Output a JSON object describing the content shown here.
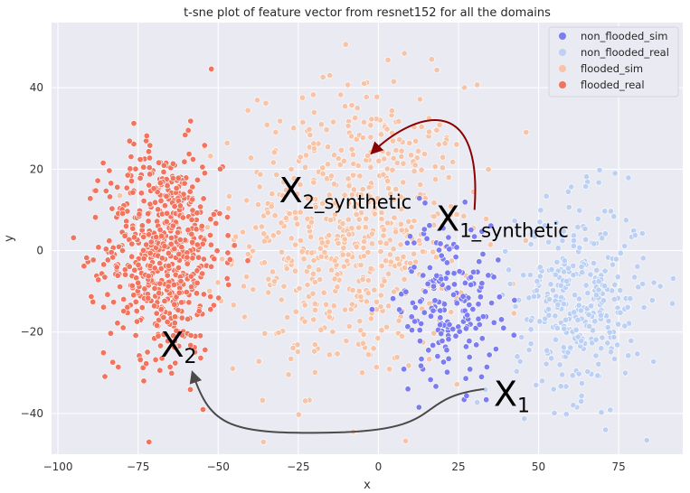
{
  "chart_data": {
    "type": "scatter",
    "title": "t-sne plot of feature vector from resnet152 for all the domains",
    "xlabel": "x",
    "ylabel": "y",
    "xlim": [
      -102,
      95
    ],
    "ylim": [
      -50,
      56
    ],
    "xticks": [
      -100,
      -75,
      -50,
      -25,
      0,
      25,
      50,
      75
    ],
    "yticks": [
      -40,
      -20,
      0,
      20,
      40
    ],
    "grid": true,
    "legend_position": "top-right",
    "series": [
      {
        "name": "non_flooded_sim",
        "color": "#7b7cf0",
        "center": [
          22,
          -12
        ],
        "spread": [
          8,
          10
        ],
        "count": 190
      },
      {
        "name": "non_flooded_real",
        "color": "#bcd0f4",
        "center": [
          63,
          -12
        ],
        "spread": [
          10,
          12
        ],
        "count": 330
      },
      {
        "name": "flooded_sim",
        "color": "#f7c4a8",
        "center": [
          -8,
          5
        ],
        "spread": [
          18,
          18
        ],
        "count": 620
      },
      {
        "name": "flooded_real",
        "color": "#f2735e",
        "center": [
          -67,
          0
        ],
        "spread": [
          9,
          13
        ],
        "count": 620
      }
    ],
    "annotations": [
      {
        "base": "X",
        "sub": "1",
        "x": 36,
        "y": -35
      },
      {
        "base": "X",
        "sub": "2",
        "x": -68,
        "y": -23
      },
      {
        "base": "X",
        "sub": "1_synthetic",
        "x": 18,
        "y": 8
      },
      {
        "base": "X",
        "sub": "2_synthetic",
        "x": -31,
        "y": 15
      }
    ],
    "arrows": [
      {
        "from": [
          33,
          -34
        ],
        "to": [
          -58,
          -30
        ],
        "color": "#4a4a4a"
      },
      {
        "from": [
          30,
          10
        ],
        "to": [
          -2,
          24
        ],
        "color": "#8b0000"
      }
    ]
  }
}
